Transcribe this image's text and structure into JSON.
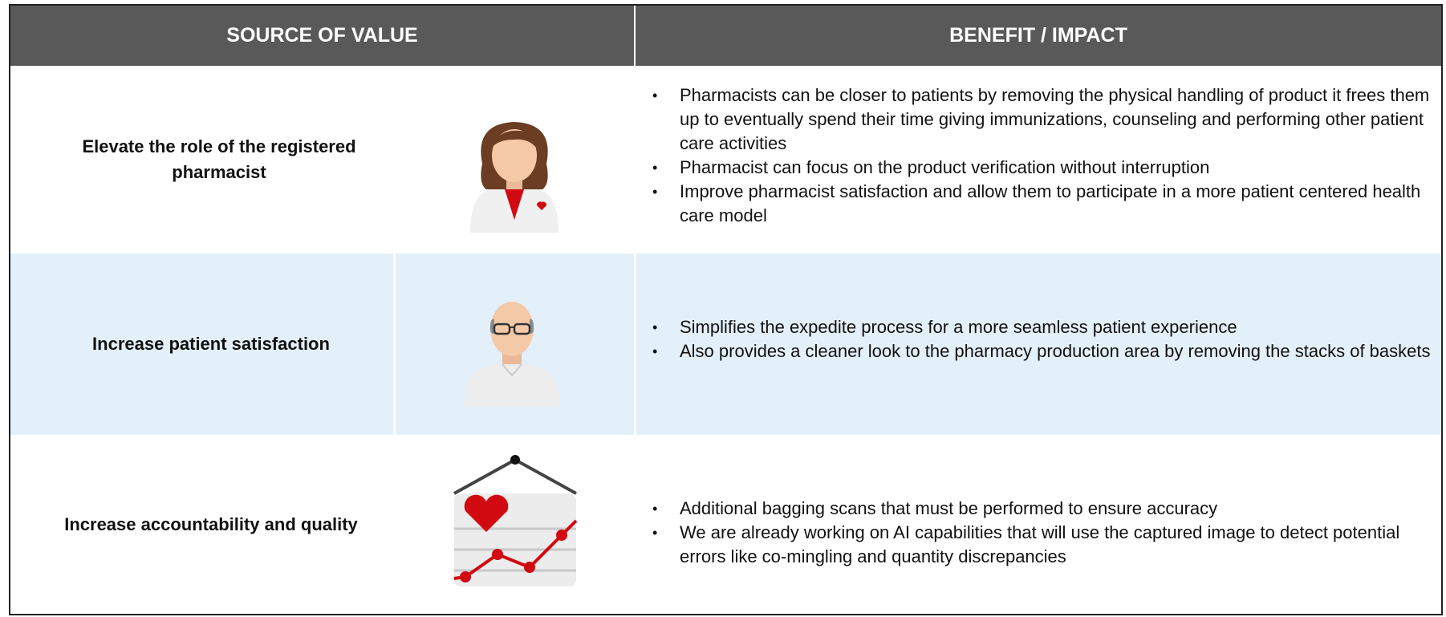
{
  "header": {
    "columns": [
      "SOURCE OF VALUE",
      "BENEFIT / IMPACT"
    ]
  },
  "rows": [
    {
      "source": "Elevate the role of the registered pharmacist",
      "benefits": [
        "Pharmacists can be closer to patients by removing the physical handling of product it frees them up to eventually spend their time giving immunizations, counseling and performing other patient care activities",
        "Pharmacist can focus on the product verification without interruption",
        "Improve pharmacist satisfaction and allow them to participate in a more patient centered health care model"
      ]
    },
    {
      "source": "Increase patient satisfaction",
      "benefits": [
        "Simplifies the expedite process for a more seamless patient experience",
        "Also provides a cleaner look to the pharmacy production area by removing the stacks of baskets"
      ]
    },
    {
      "source": "Increase accountability and quality",
      "benefits": [
        "Additional bagging scans that must be performed to ensure accuracy",
        "We are already working on AI capabilities that will use the captured image to detect potential errors like co-mingling and quantity discrepancies"
      ]
    }
  ]
}
